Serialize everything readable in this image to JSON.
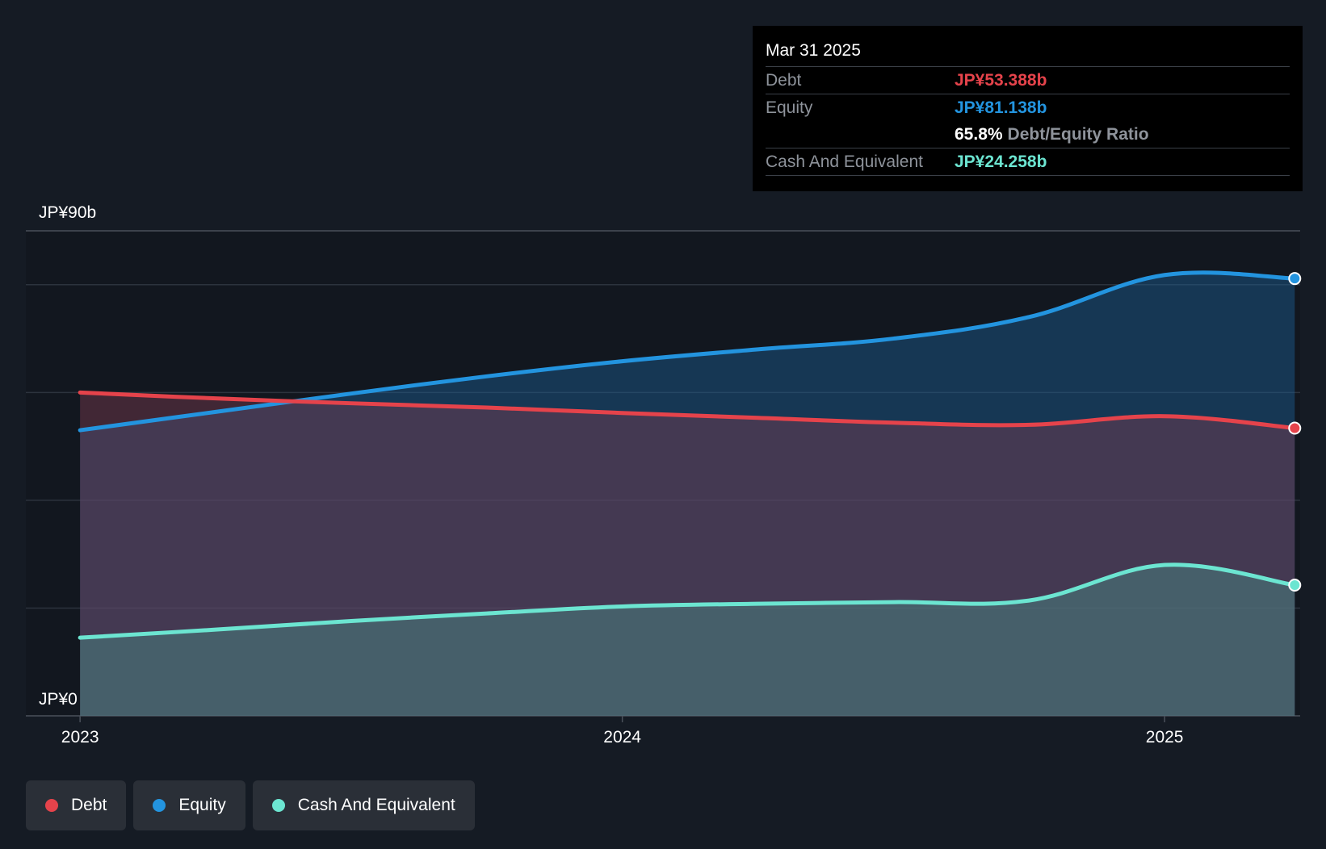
{
  "colors": {
    "background": "#151b24",
    "debt": "#e5434b",
    "equity": "#2394df",
    "cash": "#6ce5d1",
    "gridline": "#2c333d",
    "axis_text": "#ffffff"
  },
  "tooltip": {
    "date": "Mar 31 2025",
    "debt_label": "Debt",
    "debt_value": "JP¥53.388b",
    "equity_label": "Equity",
    "equity_value": "JP¥81.138b",
    "ratio_value": "65.8%",
    "ratio_label": "Debt/Equity Ratio",
    "cash_label": "Cash And Equivalent",
    "cash_value": "JP¥24.258b"
  },
  "legend": {
    "items": [
      {
        "label": "Debt",
        "color": "#e5434b"
      },
      {
        "label": "Equity",
        "color": "#2394df"
      },
      {
        "label": "Cash And Equivalent",
        "color": "#6ce5d1"
      }
    ]
  },
  "chart_data": {
    "type": "area",
    "title": "",
    "xlabel": "",
    "ylabel": "",
    "y_tick_labels": [
      "JP¥0",
      "JP¥90b"
    ],
    "x_tick_labels": [
      "2023",
      "2024",
      "2025"
    ],
    "x_ticks": [
      2023.0,
      2024.0,
      2025.0
    ],
    "xlim": [
      2022.9,
      2025.25
    ],
    "ylim": [
      0,
      90
    ],
    "grid": true,
    "legend_position": "bottom-left",
    "series": [
      {
        "name": "Debt",
        "color": "#e5434b",
        "x": [
          2023.0,
          2023.25,
          2023.5,
          2023.75,
          2024.0,
          2024.25,
          2024.5,
          2024.75,
          2025.0,
          2025.24
        ],
        "values": [
          60.0,
          58.9,
          58.0,
          57.2,
          56.2,
          55.3,
          54.4,
          54.0,
          55.6,
          53.388
        ]
      },
      {
        "name": "Equity",
        "color": "#2394df",
        "x": [
          2023.0,
          2023.25,
          2023.5,
          2023.75,
          2024.0,
          2024.25,
          2024.5,
          2024.75,
          2025.0,
          2025.24
        ],
        "values": [
          53.0,
          56.4,
          59.8,
          63.0,
          65.8,
          68.0,
          70.0,
          74.0,
          81.8,
          81.138
        ]
      },
      {
        "name": "Cash And Equivalent",
        "color": "#6ce5d1",
        "x": [
          2023.0,
          2023.25,
          2023.5,
          2023.75,
          2024.0,
          2024.25,
          2024.5,
          2024.75,
          2025.0,
          2025.24
        ],
        "values": [
          14.5,
          16.0,
          17.6,
          19.0,
          20.3,
          20.8,
          21.1,
          21.4,
          28.0,
          24.258
        ]
      }
    ]
  }
}
